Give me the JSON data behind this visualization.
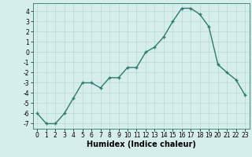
{
  "x": [
    0,
    1,
    2,
    3,
    4,
    5,
    6,
    7,
    8,
    9,
    10,
    11,
    12,
    13,
    14,
    15,
    16,
    17,
    18,
    19,
    20,
    21,
    22,
    23
  ],
  "y": [
    -6,
    -7,
    -7,
    -6,
    -4.5,
    -3,
    -3,
    -3.5,
    -2.5,
    -2.5,
    -1.5,
    -1.5,
    0,
    0.5,
    1.5,
    3,
    4.3,
    4.3,
    3.7,
    2.5,
    -1.2,
    -2,
    -2.7,
    -4.2
  ],
  "line_color": "#2d7a6e",
  "marker": "+",
  "marker_color": "#2d7a6e",
  "background_color": "#d6eeeb",
  "grid_color": "#b8d8d4",
  "xlabel": "Humidex (Indice chaleur)",
  "xlim": [
    -0.5,
    23.5
  ],
  "ylim": [
    -7.5,
    4.8
  ],
  "yticks": [
    -7,
    -6,
    -5,
    -4,
    -3,
    -2,
    -1,
    0,
    1,
    2,
    3,
    4
  ],
  "xticks": [
    0,
    1,
    2,
    3,
    4,
    5,
    6,
    7,
    8,
    9,
    10,
    11,
    12,
    13,
    14,
    15,
    16,
    17,
    18,
    19,
    20,
    21,
    22,
    23
  ],
  "tick_label_fontsize": 5.5,
  "xlabel_fontsize": 7.0,
  "line_width": 1.0,
  "marker_size": 3
}
